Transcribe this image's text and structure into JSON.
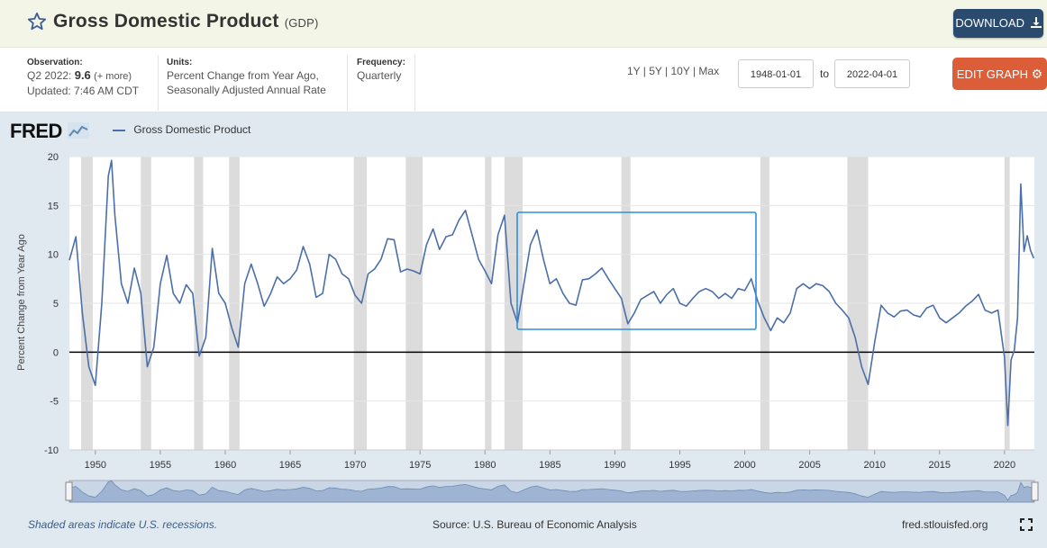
{
  "header": {
    "title": "Gross Domestic Product",
    "code": "(GDP)",
    "download_label": "DOWNLOAD"
  },
  "info": {
    "observation_label": "Observation:",
    "observation_period": "Q2 2022:",
    "observation_value": "9.6",
    "observation_more": "(+ more)",
    "updated": "Updated: 7:46 AM CDT",
    "units_label": "Units:",
    "units_line1": "Percent Change from Year Ago,",
    "units_line2": "Seasonally Adjusted Annual Rate",
    "frequency_label": "Frequency:",
    "frequency_value": "Quarterly",
    "ranges": "1Y | 5Y | 10Y | Max",
    "start_date": "1948-01-01",
    "to_label": "to",
    "end_date": "2022-04-01",
    "edit_label": "EDIT GRAPH"
  },
  "branding": {
    "logo": "FRED"
  },
  "footer": {
    "note": "Shaded areas indicate U.S. recessions.",
    "source": "Source: U.S. Bureau of Economic Analysis",
    "site": "fred.stlouisfed.org"
  },
  "colors": {
    "line": "#4b6fa8",
    "recession": "#dcdcdc",
    "highlight": "#2f8fdc",
    "edit_button": "#dc5e39",
    "download_button": "#2b4b6e"
  },
  "chart_data": {
    "type": "line",
    "ylabel": "Percent Change from Year Ago",
    "xlim": [
      1948.0,
      2022.3
    ],
    "ylim": [
      -10,
      20
    ],
    "yticks": [
      20,
      15,
      10,
      5,
      0,
      -5,
      -10
    ],
    "xticks": [
      1950,
      1955,
      1960,
      1965,
      1970,
      1975,
      1980,
      1985,
      1990,
      1995,
      2000,
      2005,
      2010,
      2015,
      2020
    ],
    "grid": true,
    "legend_position": "top-left",
    "series": [
      {
        "name": "Gross Domestic Product",
        "x": [
          1948.0,
          1948.5,
          1949.0,
          1949.5,
          1950.0,
          1950.5,
          1951.0,
          1951.25,
          1951.5,
          1952.0,
          1952.5,
          1953.0,
          1953.5,
          1954.0,
          1954.5,
          1955.0,
          1955.5,
          1956.0,
          1956.5,
          1957.0,
          1957.5,
          1958.0,
          1958.5,
          1959.0,
          1959.5,
          1960.0,
          1960.5,
          1961.0,
          1961.5,
          1962.0,
          1962.5,
          1963.0,
          1963.5,
          1964.0,
          1964.5,
          1965.0,
          1965.5,
          1966.0,
          1966.5,
          1967.0,
          1967.5,
          1968.0,
          1968.5,
          1969.0,
          1969.5,
          1970.0,
          1970.5,
          1971.0,
          1971.5,
          1972.0,
          1972.5,
          1973.0,
          1973.5,
          1974.0,
          1974.5,
          1975.0,
          1975.5,
          1976.0,
          1976.5,
          1977.0,
          1977.5,
          1978.0,
          1978.5,
          1979.0,
          1979.5,
          1980.0,
          1980.5,
          1981.0,
          1981.5,
          1982.0,
          1982.5,
          1983.0,
          1983.5,
          1984.0,
          1984.5,
          1985.0,
          1985.5,
          1986.0,
          1986.5,
          1987.0,
          1987.5,
          1988.0,
          1988.5,
          1989.0,
          1989.5,
          1990.0,
          1990.5,
          1991.0,
          1991.5,
          1992.0,
          1992.5,
          1993.0,
          1993.5,
          1994.0,
          1994.5,
          1995.0,
          1995.5,
          1996.0,
          1996.5,
          1997.0,
          1997.5,
          1998.0,
          1998.5,
          1999.0,
          1999.5,
          2000.0,
          2000.5,
          2001.0,
          2001.5,
          2002.0,
          2002.5,
          2003.0,
          2003.5,
          2004.0,
          2004.5,
          2005.0,
          2005.5,
          2006.0,
          2006.5,
          2007.0,
          2007.5,
          2008.0,
          2008.5,
          2009.0,
          2009.5,
          2010.0,
          2010.5,
          2011.0,
          2011.5,
          2012.0,
          2012.5,
          2013.0,
          2013.5,
          2014.0,
          2014.5,
          2015.0,
          2015.5,
          2016.0,
          2016.5,
          2017.0,
          2017.5,
          2018.0,
          2018.5,
          2019.0,
          2019.5,
          2020.0,
          2020.25,
          2020.5,
          2020.75,
          2021.0,
          2021.25,
          2021.5,
          2021.75,
          2022.0,
          2022.25
        ],
        "y": [
          9.4,
          11.8,
          4.0,
          -1.5,
          -3.4,
          5.0,
          18.0,
          19.6,
          14.0,
          7.0,
          5.0,
          8.6,
          6.0,
          -1.5,
          0.5,
          7.0,
          9.9,
          6.0,
          5.0,
          6.9,
          6.0,
          -0.4,
          1.5,
          10.6,
          6.0,
          5.0,
          2.5,
          0.5,
          7.0,
          9.0,
          7.0,
          4.7,
          6.0,
          7.7,
          7.0,
          7.5,
          8.4,
          10.8,
          9.0,
          5.6,
          6.0,
          10.0,
          9.5,
          8.0,
          7.5,
          5.8,
          5.0,
          8.0,
          8.5,
          9.5,
          11.6,
          11.5,
          8.2,
          8.5,
          8.3,
          8.0,
          11.0,
          12.6,
          10.5,
          11.8,
          12.0,
          13.5,
          14.5,
          12.0,
          9.5,
          8.3,
          7.0,
          12.0,
          14.0,
          5.0,
          3.0,
          7.0,
          11.0,
          12.5,
          9.5,
          7.0,
          7.5,
          6.0,
          5.0,
          4.8,
          7.4,
          7.5,
          8.0,
          8.6,
          7.5,
          6.5,
          5.5,
          2.9,
          4.0,
          5.4,
          5.8,
          6.2,
          5.0,
          5.9,
          6.5,
          5.0,
          4.7,
          5.5,
          6.2,
          6.5,
          6.2,
          5.5,
          6.0,
          5.5,
          6.5,
          6.3,
          7.5,
          5.2,
          3.5,
          2.2,
          3.5,
          3.0,
          4.0,
          6.5,
          7.0,
          6.5,
          7.0,
          6.8,
          6.2,
          5.0,
          4.3,
          3.5,
          1.5,
          -1.5,
          -3.3,
          1.0,
          4.8,
          4.0,
          3.6,
          4.2,
          4.3,
          3.8,
          3.6,
          4.5,
          4.8,
          3.5,
          3.0,
          3.5,
          4.0,
          4.7,
          5.2,
          5.9,
          4.3,
          4.0,
          4.3,
          -0.5,
          -7.5,
          -0.8,
          0.2,
          3.5,
          17.2,
          10.3,
          11.9,
          10.4,
          9.6
        ]
      }
    ]
  }
}
